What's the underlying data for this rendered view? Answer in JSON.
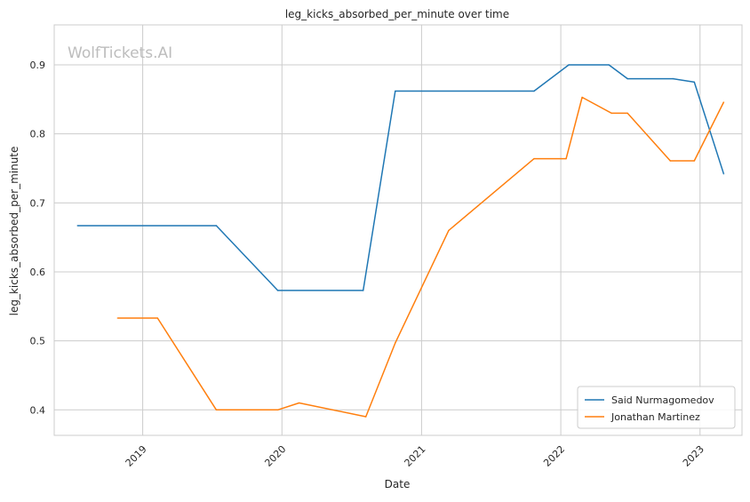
{
  "chart_data": {
    "type": "line",
    "title": "leg_kicks_absorbed_per_minute over time",
    "xlabel": "Date",
    "ylabel": "leg_kicks_absorbed_per_minute",
    "watermark": "WolfTickets.AI",
    "x_range": [
      "2018-05-14",
      "2023-04-21"
    ],
    "ylim": [
      0.363,
      0.958
    ],
    "x_ticks": [
      "2019",
      "2020",
      "2021",
      "2022",
      "2023"
    ],
    "x_tick_dates": [
      "2019-01-01",
      "2020-01-01",
      "2021-01-01",
      "2022-01-01",
      "2023-01-01"
    ],
    "y_ticks": [
      "0.4",
      "0.5",
      "0.6",
      "0.7",
      "0.8",
      "0.9"
    ],
    "y_tick_values": [
      0.4,
      0.5,
      0.6,
      0.7,
      0.8,
      0.9
    ],
    "grid": true,
    "legend_position": "bottom-right",
    "series": [
      {
        "name": "Said Nurmagomedov",
        "color": "#1f77b4",
        "points": [
          [
            "2018-07-14",
            0.667
          ],
          [
            "2019-07-13",
            0.667
          ],
          [
            "2019-12-21",
            0.573
          ],
          [
            "2020-08-01",
            0.573
          ],
          [
            "2020-10-24",
            0.862
          ],
          [
            "2021-10-23",
            0.862
          ],
          [
            "2022-01-22",
            0.9
          ],
          [
            "2022-05-07",
            0.9
          ],
          [
            "2022-06-25",
            0.88
          ],
          [
            "2022-10-22",
            0.88
          ],
          [
            "2022-12-17",
            0.875
          ],
          [
            "2023-03-04",
            0.742
          ]
        ]
      },
      {
        "name": "Jonathan Martinez",
        "color": "#ff7f0e",
        "points": [
          [
            "2018-10-27",
            0.533
          ],
          [
            "2019-02-09",
            0.533
          ],
          [
            "2019-07-13",
            0.4
          ],
          [
            "2019-12-21",
            0.4
          ],
          [
            "2020-02-15",
            0.41
          ],
          [
            "2020-08-08",
            0.39
          ],
          [
            "2020-10-24",
            0.497
          ],
          [
            "2021-03-13",
            0.66
          ],
          [
            "2021-10-23",
            0.764
          ],
          [
            "2022-01-15",
            0.764
          ],
          [
            "2022-02-26",
            0.853
          ],
          [
            "2022-05-14",
            0.83
          ],
          [
            "2022-06-25",
            0.83
          ],
          [
            "2022-10-15",
            0.761
          ],
          [
            "2022-12-17",
            0.761
          ],
          [
            "2023-03-04",
            0.846
          ]
        ]
      }
    ]
  }
}
